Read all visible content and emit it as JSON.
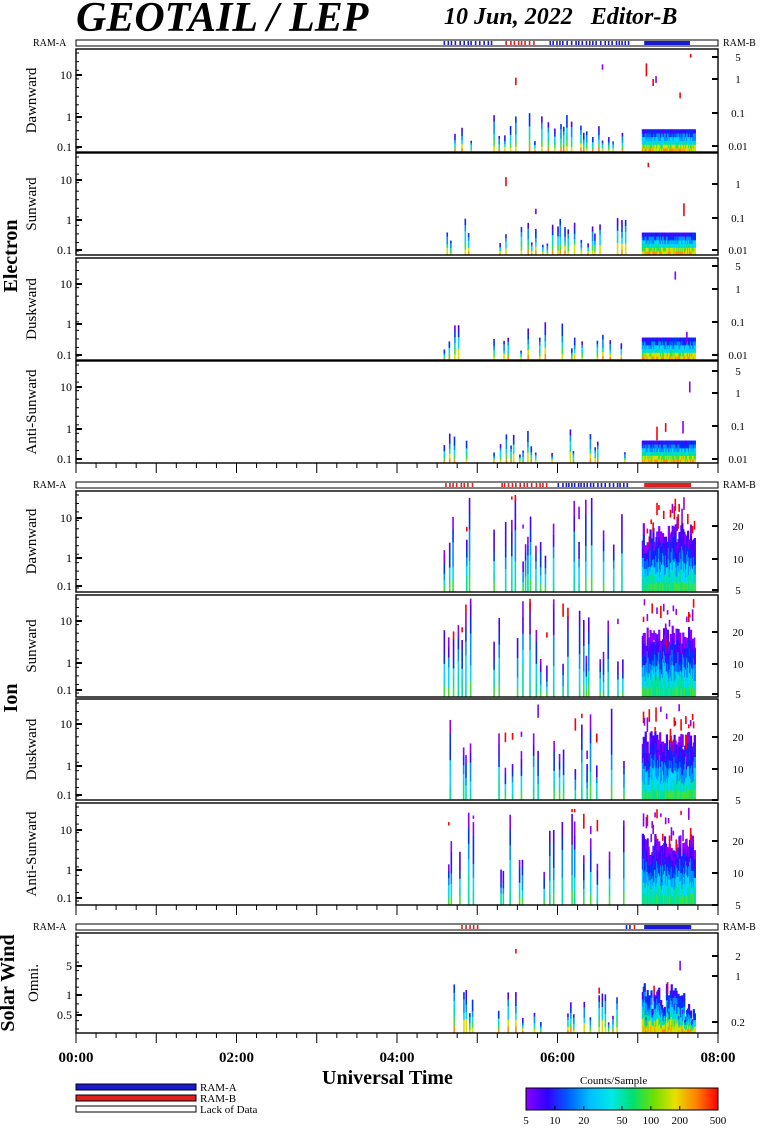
{
  "header": {
    "title": "GEOTAIL / LEP",
    "date": "10 Jun, 2022",
    "edition": "Editor-B"
  },
  "xaxis": {
    "title": "Universal Time",
    "ticks": [
      "00:00",
      "02:00",
      "04:00",
      "06:00",
      "08:00"
    ],
    "range_hours": [
      0,
      8
    ]
  },
  "ram_labels": {
    "left": "RAM-A",
    "right": "RAM-B"
  },
  "groups": [
    {
      "label": "Electron"
    },
    {
      "label": "Ion"
    },
    {
      "label": "Solar Wind"
    }
  ],
  "legend": {
    "items": [
      {
        "label": "RAM-A",
        "color": "#1a1ad2"
      },
      {
        "label": "RAM-B",
        "color": "#e02020"
      },
      {
        "label": "Lack of Data",
        "color": "#ffffff"
      }
    ]
  },
  "colorbar": {
    "title": "Counts/Sample",
    "ticks": [
      "5",
      "10",
      "20",
      "50",
      "100",
      "200",
      "500"
    ]
  },
  "chart_data": {
    "type": "heatmap",
    "x_unit": "hours UT",
    "x_range": [
      0,
      8
    ],
    "data_intervals_hours": [
      [
        4.58,
        4.95
      ],
      [
        5.2,
        6.85
      ],
      [
        7.05,
        7.7
      ]
    ],
    "ram_bars": [
      {
        "group": "Electron",
        "ram_b_segments": [
          [
            5.35,
            5.7
          ],
          [
            7.1,
            7.65
          ]
        ],
        "ram_a_segments": [
          [
            4.58,
            5.2
          ],
          [
            5.9,
            6.9
          ]
        ]
      },
      {
        "group": "Ion",
        "ram_b_segments": [
          [
            4.6,
            4.95
          ],
          [
            5.3,
            5.9
          ],
          [
            7.1,
            7.65
          ]
        ],
        "ram_a_segments": [
          [
            6.0,
            6.9
          ]
        ]
      },
      {
        "group": "Solar Wind",
        "ram_b_segments": [
          [
            4.8,
            5.0
          ],
          [
            6.95,
            7.0
          ]
        ],
        "ram_a_segments": [
          [
            6.85,
            6.9
          ],
          [
            7.1,
            7.65
          ]
        ]
      }
    ],
    "panels": [
      {
        "group": "Electron",
        "label": "Dawnward",
        "left_ticks": [
          "10",
          "1",
          "0.1"
        ],
        "right_ticks": [
          "5",
          "1",
          "0.1",
          "0.01"
        ]
      },
      {
        "group": "Electron",
        "label": "Sunward",
        "left_ticks": [
          "10",
          "1",
          "0.1"
        ],
        "right_ticks": [
          "1",
          "0.1",
          "0.01"
        ]
      },
      {
        "group": "Electron",
        "label": "Duskward",
        "left_ticks": [
          "10",
          "1",
          "0.1"
        ],
        "right_ticks": [
          "5",
          "1",
          "0.1",
          "0.01"
        ]
      },
      {
        "group": "Electron",
        "label": "Anti-Sunward",
        "left_ticks": [
          "10",
          "1",
          "0.1"
        ],
        "right_ticks": [
          "5",
          "1",
          "0.1",
          "0.01"
        ]
      },
      {
        "group": "Ion",
        "label": "Dawnward",
        "left_ticks": [
          "10",
          "1",
          "0.1"
        ],
        "right_ticks": [
          "20",
          "10",
          "5"
        ]
      },
      {
        "group": "Ion",
        "label": "Sunward",
        "left_ticks": [
          "10",
          "1",
          "0.1"
        ],
        "right_ticks": [
          "20",
          "10",
          "5"
        ]
      },
      {
        "group": "Ion",
        "label": "Duskward",
        "left_ticks": [
          "10",
          "1",
          "0.1"
        ],
        "right_ticks": [
          "20",
          "10",
          "5"
        ]
      },
      {
        "group": "Ion",
        "label": "Anti-Sunward",
        "left_ticks": [
          "10",
          "1",
          "0.1"
        ],
        "right_ticks": [
          "20",
          "10",
          "5"
        ]
      },
      {
        "group": "Solar Wind",
        "label": "Omni.",
        "left_ticks": [
          "5",
          "1",
          "0.5"
        ],
        "right_ticks": [
          "2",
          "1",
          "0.2"
        ]
      }
    ],
    "colorbar_range": [
      5,
      500
    ],
    "colorbar_scale": "log"
  }
}
